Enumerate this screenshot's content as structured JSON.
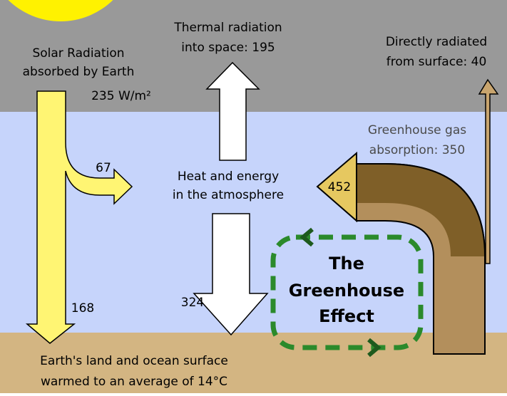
{
  "labels": {
    "solar": [
      "Solar Radiation",
      "absorbed by Earth",
      "235 W/m²"
    ],
    "thermal": [
      "Thermal radiation",
      "into space: 195"
    ],
    "direct": [
      "Directly radiated",
      "from surface: 40"
    ],
    "greenhouse_gas": [
      "Greenhouse gas",
      "absorption: 350"
    ],
    "atmosphere": [
      "Heat and energy",
      "in the atmosphere"
    ],
    "surface": [
      "Earth's land and ocean surface",
      "warmed to an average of 14°C"
    ],
    "absorbed_atmosphere": 67,
    "absorbed_surface": 168,
    "back_radiation": 324,
    "emitted": 452,
    "effect": [
      "The",
      "Greenhouse",
      "Effect"
    ]
  }
}
